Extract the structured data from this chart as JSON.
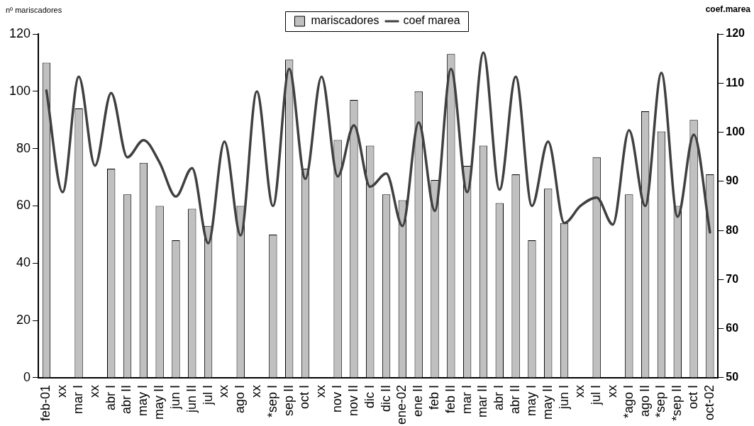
{
  "chart_data": {
    "type": "bar",
    "ylabel": "nº mariscadores",
    "y2label": "coef.marea",
    "categories": [
      "feb-01",
      "xx",
      "mar I",
      "xx",
      "abr I",
      "abr II",
      "may I",
      "may II",
      "jun I",
      "jun II",
      "jul I",
      "xx",
      "ago I",
      "xx",
      "*sep I",
      "sep II",
      "oct I",
      "xx",
      "nov I",
      "nov II",
      "dic I",
      "dic II",
      "ene-02",
      "ene II",
      "feb I",
      "feb II",
      "mar I",
      "mar II",
      "abr I",
      "abr II",
      "may I",
      "may II",
      "jun I",
      "xx",
      "jul I",
      "xx",
      "*ago I",
      "ago II",
      "*sep I",
      "*sep II",
      "oct I",
      "oct-02"
    ],
    "series": [
      {
        "name": "mariscadores",
        "color": "#c0c0c0",
        "values": [
          110,
          null,
          94,
          null,
          73,
          64,
          75,
          60,
          48,
          59,
          53,
          null,
          60,
          null,
          50,
          111,
          73,
          null,
          83,
          97,
          81,
          64,
          62,
          100,
          69,
          113,
          74,
          81,
          61,
          71,
          48,
          66,
          54,
          null,
          77,
          null,
          64,
          93,
          86,
          60,
          90,
          71
        ]
      },
      {
        "name": "coef marea",
        "type": "line",
        "axis": "y2",
        "color": "#404040",
        "values": [
          108.5,
          87.8,
          111.3,
          93.2,
          108,
          94.9,
          98.4,
          93.8,
          86.9,
          92.7,
          77.4,
          98.1,
          79,
          108.3,
          85,
          112.9,
          90.5,
          111.3,
          91,
          101.4,
          88.9,
          91.6,
          80.9,
          102,
          84,
          112.9,
          87.8,
          116.2,
          88.3,
          111.3,
          85,
          98.1,
          81.5,
          85,
          86.7,
          81.2,
          100.4,
          85,
          112.1,
          82.8,
          99.5,
          79.6
        ]
      }
    ],
    "ylim": [
      0,
      120
    ],
    "yticks": [
      0,
      20,
      40,
      60,
      80,
      100,
      120
    ],
    "y2lim": [
      50,
      120
    ],
    "y2ticks": [
      50,
      60,
      70,
      80,
      90,
      100,
      110,
      120
    ],
    "grid": false,
    "legend": "top",
    "marker": "none",
    "line_style": "solid"
  }
}
